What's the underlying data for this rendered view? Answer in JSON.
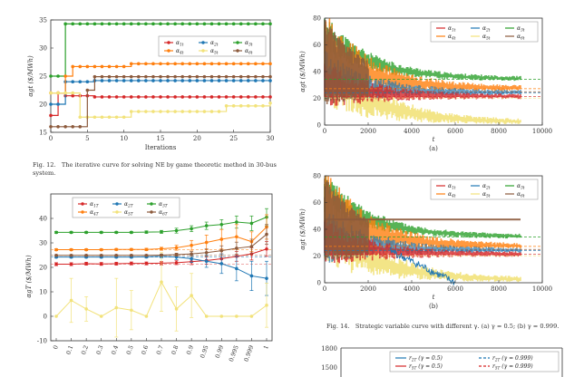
{
  "fig12": {
    "caption_label": "Fig. 12.",
    "caption_text": "The iterative curve for solving NE by game theoretic method in 30-bus",
    "caption_text_2": "system.",
    "chart_data": {
      "type": "line",
      "xlabel": "Iterations",
      "ylabel": "αgt ($/MWh)",
      "xlim": [
        0,
        30
      ],
      "ylim": [
        15,
        35
      ],
      "x_ticks": [
        "0",
        "5",
        "10",
        "15",
        "20",
        "25",
        "30"
      ],
      "y_ticks": [
        "15",
        "20",
        "25",
        "30",
        "35"
      ],
      "legend": [
        "α1t",
        "α2t",
        "α3t",
        "α4t",
        "α5t",
        "α6t"
      ],
      "colors": [
        "#d62728",
        "#1f77b4",
        "#2ca02c",
        "#ff7f0e",
        "#f2e27a",
        "#8c5a3c"
      ],
      "series": [
        {
          "name": "α1t",
          "x": [
            0,
            1,
            2,
            3,
            4,
            5,
            6,
            7,
            8,
            9,
            10,
            11,
            12,
            13,
            14,
            15,
            16,
            17,
            18,
            19,
            20,
            21,
            22,
            23,
            24,
            25,
            26,
            27,
            28,
            29,
            30
          ],
          "values": [
            18,
            22,
            21.5,
            21.5,
            21.5,
            21.5,
            21.3,
            21.3,
            21.3,
            21.3,
            21.3,
            21.3,
            21.3,
            21.3,
            21.3,
            21.3,
            21.3,
            21.3,
            21.3,
            21.3,
            21.3,
            21.3,
            21.3,
            21.3,
            21.3,
            21.3,
            21.3,
            21.3,
            21.3,
            21.3,
            21.3
          ]
        },
        {
          "name": "α2t",
          "x": [
            0,
            1,
            2,
            3,
            4,
            5,
            6,
            7,
            8,
            9,
            10,
            11,
            12,
            13,
            14,
            15,
            16,
            17,
            18,
            19,
            20,
            21,
            22,
            23,
            24,
            25,
            26,
            27,
            28,
            29,
            30
          ],
          "values": [
            20,
            20,
            24,
            24,
            24,
            24,
            24.2,
            24.2,
            24.2,
            24.2,
            24.2,
            24.2,
            24.2,
            24.2,
            24.2,
            24.2,
            24.2,
            24.2,
            24.2,
            24.2,
            24.2,
            24.2,
            24.2,
            24.2,
            24.2,
            24.2,
            24.2,
            24.2,
            24.2,
            24.2,
            24.2
          ]
        },
        {
          "name": "α3t",
          "x": [
            0,
            1,
            2,
            3,
            4,
            5,
            6,
            7,
            8,
            9,
            10,
            11,
            12,
            13,
            14,
            15,
            16,
            17,
            18,
            19,
            20,
            21,
            22,
            23,
            24,
            25,
            26,
            27,
            28,
            29,
            30
          ],
          "values": [
            25,
            25,
            34.3,
            34.3,
            34.3,
            34.3,
            34.3,
            34.3,
            34.3,
            34.3,
            34.3,
            34.3,
            34.3,
            34.3,
            34.3,
            34.3,
            34.3,
            34.3,
            34.3,
            34.3,
            34.3,
            34.3,
            34.3,
            34.3,
            34.3,
            34.3,
            34.3,
            34.3,
            34.3,
            34.3,
            34.3
          ]
        },
        {
          "name": "α4t",
          "x": [
            0,
            1,
            2,
            3,
            4,
            5,
            6,
            7,
            8,
            9,
            10,
            11,
            12,
            13,
            14,
            15,
            16,
            17,
            18,
            19,
            20,
            21,
            22,
            23,
            24,
            25,
            26,
            27,
            28,
            29,
            30
          ],
          "values": [
            22,
            22,
            25,
            26.7,
            26.7,
            26.7,
            26.7,
            26.7,
            26.7,
            26.7,
            26.7,
            27.2,
            27.2,
            27.2,
            27.2,
            27.2,
            27.2,
            27.2,
            27.2,
            27.2,
            27.2,
            27.2,
            27.2,
            27.2,
            27.2,
            27.2,
            27.2,
            27.2,
            27.2,
            27.2,
            27.2
          ]
        },
        {
          "name": "α5t",
          "x": [
            0,
            1,
            2,
            3,
            4,
            5,
            6,
            7,
            8,
            9,
            10,
            11,
            12,
            13,
            14,
            15,
            16,
            17,
            18,
            19,
            20,
            21,
            22,
            23,
            24,
            25,
            26,
            27,
            28,
            29,
            30
          ],
          "values": [
            22,
            22,
            22,
            22,
            17.7,
            17.7,
            17.7,
            17.7,
            17.7,
            17.7,
            17.7,
            18.7,
            18.7,
            18.7,
            18.7,
            18.7,
            18.7,
            18.7,
            18.7,
            18.7,
            18.7,
            18.7,
            18.7,
            18.7,
            19.7,
            19.7,
            19.7,
            19.7,
            19.7,
            19.7,
            20.2
          ]
        },
        {
          "name": "α6t",
          "x": [
            0,
            1,
            2,
            3,
            4,
            5,
            6,
            7,
            8,
            9,
            10,
            11,
            12,
            13,
            14,
            15,
            16,
            17,
            18,
            19,
            20,
            21,
            22,
            23,
            24,
            25,
            26,
            27,
            28,
            29,
            30
          ],
          "values": [
            16,
            16,
            16,
            16,
            16,
            22.5,
            24.9,
            24.9,
            24.9,
            24.9,
            24.9,
            24.9,
            24.9,
            24.9,
            24.9,
            24.9,
            24.9,
            24.9,
            24.9,
            24.9,
            24.9,
            24.9,
            24.9,
            24.9,
            24.9,
            24.9,
            24.9,
            24.9,
            24.9,
            24.9,
            24.9
          ]
        }
      ]
    }
  },
  "fig13": {
    "chart_data": {
      "type": "line",
      "ylabel": "αgT ($/MWh)",
      "ylim": [
        -10,
        50
      ],
      "categories": [
        "0",
        "0.1",
        "0.2",
        "0.3",
        "0.4",
        "0.5",
        "0.6",
        "0.7",
        "0.8",
        "0.9",
        "0.95",
        "0.99",
        "0.995",
        "0.999",
        "1"
      ],
      "y_ticks": [
        "-10",
        "0",
        "10",
        "20",
        "30",
        "40"
      ],
      "legend": [
        "α1T",
        "α2T",
        "α3T",
        "α4T",
        "α5T",
        "α6T"
      ],
      "colors": [
        "#d62728",
        "#1f77b4",
        "#2ca02c",
        "#ff7f0e",
        "#f2e27a",
        "#8c5a3c"
      ],
      "series": [
        {
          "name": "α1T",
          "values": [
            21.3,
            21.3,
            21.5,
            21.4,
            21.5,
            21.6,
            21.6,
            21.7,
            21.9,
            22.3,
            22.8,
            23.5,
            24.5,
            25.5,
            27.5
          ],
          "err": [
            0.6,
            0.6,
            0.6,
            0.6,
            0.6,
            0.6,
            0.6,
            0.7,
            0.8,
            1.2,
            1.5,
            2.0,
            2.0,
            2.5,
            3.0
          ]
        },
        {
          "name": "α2T",
          "values": [
            24.2,
            24.2,
            24.2,
            24.2,
            24.2,
            24.2,
            24.3,
            24.5,
            24.2,
            23.5,
            22.5,
            21.5,
            19.5,
            16.5,
            15.5
          ],
          "err": [
            0.4,
            0.4,
            0.4,
            0.4,
            0.4,
            0.4,
            0.5,
            0.6,
            1.0,
            1.5,
            2.5,
            4.0,
            5.0,
            6.0,
            7.0
          ]
        },
        {
          "name": "α3T",
          "values": [
            34.3,
            34.3,
            34.3,
            34.3,
            34.3,
            34.3,
            34.4,
            34.5,
            35.0,
            35.8,
            37.0,
            37.5,
            38.5,
            38.0,
            40.5
          ],
          "err": [
            0.4,
            0.4,
            0.4,
            0.4,
            0.4,
            0.4,
            0.5,
            0.6,
            1.0,
            1.2,
            1.5,
            2.0,
            2.5,
            3.0,
            3.5
          ]
        },
        {
          "name": "α4T",
          "values": [
            27.2,
            27.2,
            27.2,
            27.2,
            27.3,
            27.3,
            27.3,
            27.6,
            28.0,
            29.0,
            30.2,
            31.5,
            32.5,
            30.5,
            36.5
          ],
          "err": [
            0.4,
            0.4,
            0.4,
            0.4,
            0.4,
            0.4,
            0.5,
            0.6,
            1.0,
            2.0,
            3.0,
            4.0,
            5.0,
            4.0,
            5.0
          ]
        },
        {
          "name": "α5T",
          "values": [
            0,
            6.5,
            3,
            0,
            3.5,
            2.5,
            0,
            14,
            3,
            8.5,
            0,
            0,
            0,
            0,
            4.5
          ],
          "err": [
            0,
            9,
            5,
            0,
            12,
            8,
            0,
            12,
            9,
            9,
            0,
            0,
            0,
            0,
            9
          ]
        },
        {
          "name": "α6T",
          "values": [
            24.9,
            24.9,
            24.9,
            24.9,
            24.9,
            24.9,
            24.9,
            25.0,
            25.2,
            25.5,
            26.0,
            26.8,
            27.8,
            28.5,
            33.5
          ],
          "err": [
            0.3,
            0.3,
            0.3,
            0.3,
            0.3,
            0.3,
            0.3,
            0.4,
            0.6,
            1.0,
            1.5,
            2.0,
            2.5,
            3.0,
            4.0
          ]
        }
      ]
    }
  },
  "fig14": {
    "caption_label": "Fig. 14.",
    "caption_text": "Strategic variable curve with different γ. (a) γ = 0.5; (b) γ = 0.999.",
    "sub_a": "(a)",
    "sub_b": "(b)",
    "chart_data": [
      {
        "type": "line",
        "panel": "a",
        "xlabel": "t",
        "ylabel": "αgt ($/MWh)",
        "xlim": [
          0,
          10000
        ],
        "ylim": [
          0,
          80
        ],
        "x_ticks": [
          "0",
          "2000",
          "4000",
          "6000",
          "8000",
          "10000"
        ],
        "y_ticks": [
          "0",
          "20",
          "40",
          "60",
          "80"
        ],
        "legend": [
          "α1t",
          "α2t",
          "α3t",
          "α4t",
          "α5t",
          "α6t"
        ],
        "equilibrium_lines": [
          21.3,
          24.2,
          34.3,
          27.2,
          20.2,
          24.9
        ]
      },
      {
        "type": "line",
        "panel": "b",
        "xlabel": "t",
        "ylabel": "αgt ($/MWh)",
        "xlim": [
          0,
          10000
        ],
        "ylim": [
          0,
          80
        ],
        "x_ticks": [
          "0",
          "2000",
          "4000",
          "6000",
          "8000",
          "10000"
        ],
        "y_ticks": [
          "0",
          "20",
          "40",
          "60",
          "80"
        ],
        "legend": [
          "α1t",
          "α2t",
          "α3t",
          "α4t",
          "α5t",
          "α6t"
        ],
        "equilibrium_lines": [
          21.3,
          24.2,
          34.3,
          27.2,
          20.2,
          24.9
        ]
      }
    ]
  },
  "fig15": {
    "y_ticks": [
      "1800",
      "1500"
    ],
    "legend": [
      "r2T (γ = 0.5)",
      "r2T (γ = 0.999)",
      "r5T (γ = 0.5)",
      "r5T (γ = 0.999)"
    ],
    "colors": [
      "#1f77b4",
      "#1f77b4",
      "#d62728",
      "#d62728"
    ]
  }
}
